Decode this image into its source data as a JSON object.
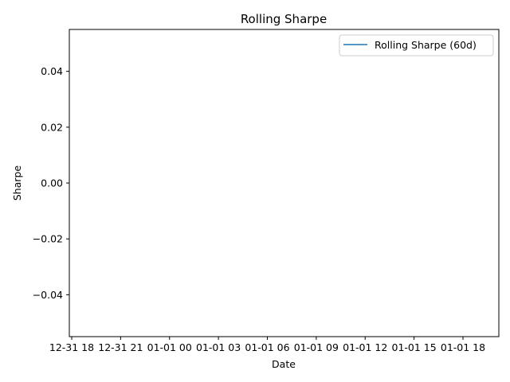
{
  "chart_data": {
    "type": "line",
    "title": "Rolling Sharpe",
    "xlabel": "Date",
    "ylabel": "Sharpe",
    "x_tick_labels": [
      "12-31 18",
      "12-31 21",
      "01-01 00",
      "01-01 03",
      "01-01 06",
      "01-01 09",
      "01-01 12",
      "01-01 15",
      "01-01 18"
    ],
    "y_ticks": [
      -0.04,
      -0.02,
      0.0,
      0.02,
      0.04
    ],
    "y_tick_labels": [
      "−0.04",
      "−0.02",
      "0.00",
      "0.02",
      "0.04"
    ],
    "ylim": [
      -0.055,
      0.055
    ],
    "grid": false,
    "legend_position": "top-right",
    "series": [
      {
        "name": "Rolling Sharpe (60d)",
        "color": "#1f77b4",
        "x": [],
        "y": []
      }
    ]
  }
}
